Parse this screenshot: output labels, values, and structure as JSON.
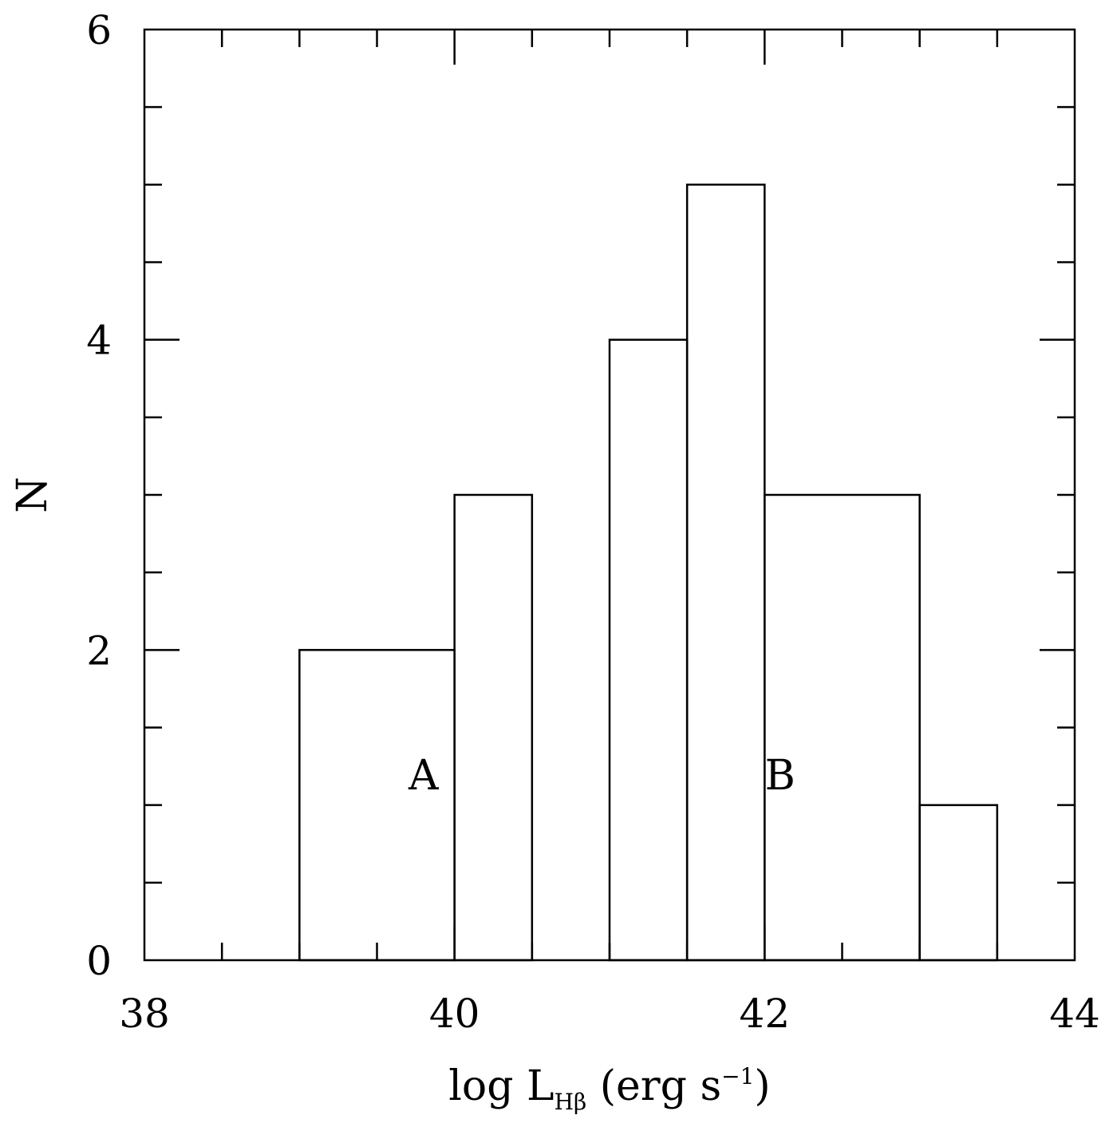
{
  "chart_data": {
    "type": "bar",
    "subtype": "histogram",
    "xlabel": {
      "prefix": "log L",
      "subscript": "Hβ",
      "suffix": " (erg s",
      "superscript": "−1",
      "close": ")"
    },
    "ylabel": "N",
    "xlim": [
      38,
      44
    ],
    "ylim": [
      0,
      6
    ],
    "x_major_ticks": [
      38,
      40,
      42,
      44
    ],
    "x_tick_labels": [
      "38",
      "40",
      "42",
      "44"
    ],
    "x_minor_step": 0.5,
    "y_major_ticks": [
      0,
      2,
      4,
      6
    ],
    "y_tick_labels": [
      "0",
      "2",
      "4",
      "6"
    ],
    "y_minor_step": 0.5,
    "grid": false,
    "bins": [
      {
        "x0": 39.0,
        "x1": 40.0,
        "count": 2
      },
      {
        "x0": 40.0,
        "x1": 40.5,
        "count": 3
      },
      {
        "x0": 41.0,
        "x1": 41.5,
        "count": 4
      },
      {
        "x0": 41.5,
        "x1": 42.0,
        "count": 5
      },
      {
        "x0": 42.0,
        "x1": 43.0,
        "count": 3
      },
      {
        "x0": 43.0,
        "x1": 43.5,
        "count": 1
      }
    ],
    "annotations": [
      {
        "text": "A",
        "x": 39.8,
        "y": 1.1
      },
      {
        "text": "B",
        "x": 42.1,
        "y": 1.1
      }
    ]
  }
}
